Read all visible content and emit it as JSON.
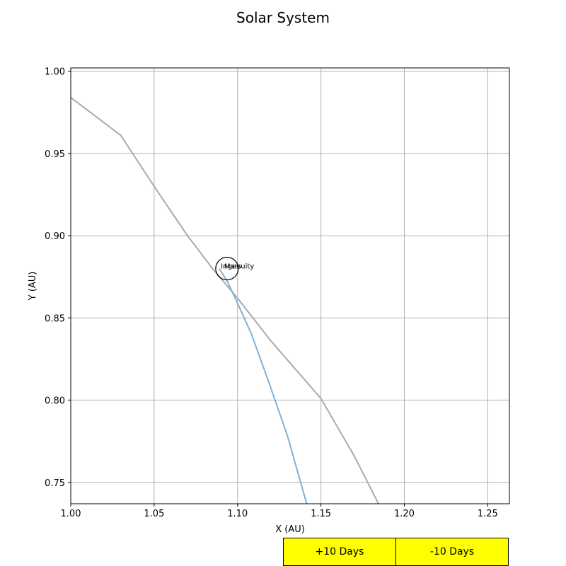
{
  "chart_data": {
    "type": "line",
    "title": "Solar System",
    "xlabel": "X (AU)",
    "ylabel": "Y (AU)",
    "xlim": [
      1.0,
      1.263
    ],
    "ylim": [
      0.737,
      1.002
    ],
    "xticks": [
      "1.00",
      "1.05",
      "1.10",
      "1.15",
      "1.20",
      "1.25"
    ],
    "yticks": [
      "0.75",
      "0.80",
      "0.85",
      "0.90",
      "0.95",
      "1.00"
    ],
    "grid": true,
    "series": [
      {
        "color": "#aaaaaa",
        "points": [
          [
            1.0,
            0.984
          ],
          [
            1.03,
            0.961
          ],
          [
            1.05,
            0.93
          ],
          [
            1.07,
            0.9
          ],
          [
            1.085,
            0.88
          ],
          [
            1.1,
            0.862
          ],
          [
            1.12,
            0.836
          ],
          [
            1.15,
            0.801
          ],
          [
            1.17,
            0.766
          ],
          [
            1.188,
            0.73
          ]
        ]
      },
      {
        "color": "#7fb2d9",
        "points": [
          [
            1.089,
            0.88
          ],
          [
            1.094,
            0.872
          ],
          [
            1.1,
            0.859
          ],
          [
            1.108,
            0.841
          ],
          [
            1.118,
            0.813
          ],
          [
            1.13,
            0.778
          ],
          [
            1.142,
            0.735
          ]
        ]
      }
    ],
    "markers": [
      {
        "label": "Ingenuity",
        "x": 1.09,
        "y": 0.88,
        "circle": false
      },
      {
        "label": "Mars",
        "x": 1.092,
        "y": 0.88,
        "circle": true
      }
    ]
  },
  "buttons": {
    "plus": "+10 Days",
    "minus": "-10 Days",
    "color": "#ffff00"
  }
}
